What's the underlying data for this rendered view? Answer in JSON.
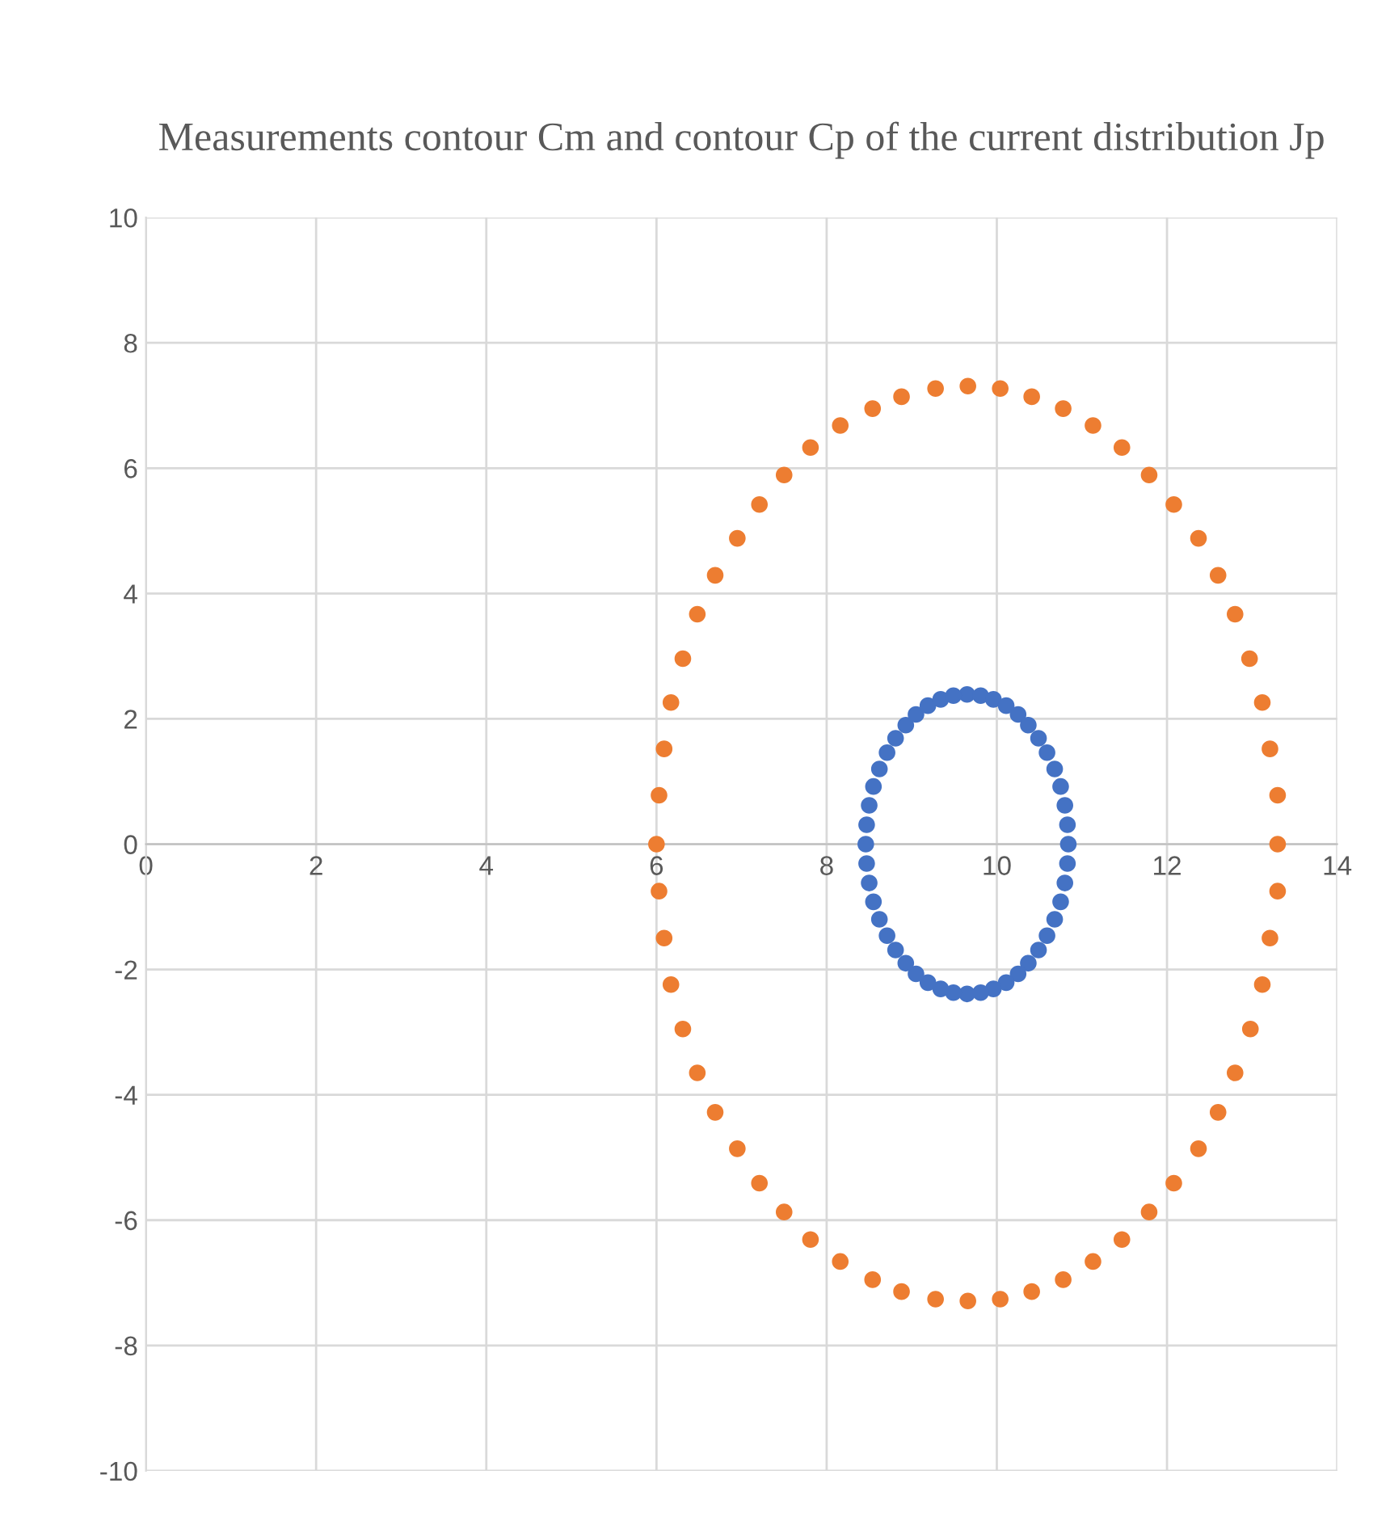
{
  "chart_data": {
    "type": "scatter",
    "title": "Measurements contour Cm and contour Cp of the current distribution Jp",
    "xlim": [
      0,
      14
    ],
    "ylim": [
      -10,
      10
    ],
    "xticks": [
      0,
      2,
      4,
      6,
      8,
      10,
      12,
      14
    ],
    "yticks": [
      -10,
      -8,
      -6,
      -4,
      -2,
      0,
      2,
      4,
      6,
      8,
      10
    ],
    "grid": true,
    "marker": "circle",
    "series": [
      {
        "color": "#4472c4",
        "x": [
          9.65,
          9.81,
          9.96,
          10.11,
          10.25,
          10.37,
          10.49,
          10.59,
          10.68,
          10.75,
          10.8,
          10.83,
          10.84,
          10.83,
          10.8,
          10.75,
          10.68,
          10.59,
          10.49,
          10.37,
          10.25,
          10.11,
          9.96,
          9.81,
          9.65,
          9.49,
          9.34,
          9.19,
          9.05,
          8.93,
          8.81,
          8.71,
          8.62,
          8.55,
          8.5,
          8.47,
          8.46,
          8.47,
          8.5,
          8.55,
          8.62,
          8.71,
          8.81,
          8.93,
          9.05,
          9.19,
          9.34,
          9.49
        ],
        "values": [
          2.39,
          2.37,
          2.31,
          2.21,
          2.07,
          1.9,
          1.69,
          1.46,
          1.2,
          0.92,
          0.62,
          0.31,
          0,
          -0.31,
          -0.62,
          -0.92,
          -1.2,
          -1.46,
          -1.69,
          -1.9,
          -2.07,
          -2.21,
          -2.31,
          -2.37,
          -2.39,
          -2.37,
          -2.31,
          -2.21,
          -2.07,
          -1.9,
          -1.69,
          -1.46,
          -1.2,
          -0.92,
          -0.62,
          -0.31,
          0,
          0.31,
          0.62,
          0.92,
          1.2,
          1.46,
          1.69,
          1.9,
          2.07,
          2.21,
          2.31,
          2.37
        ]
      },
      {
        "color": "#ed7d31",
        "x": [
          9.66,
          10.04,
          10.41,
          10.78,
          11.13,
          11.47,
          11.79,
          12.08,
          12.37,
          12.6,
          12.8,
          12.97,
          13.12,
          13.21,
          13.3,
          13.3,
          13.3,
          13.21,
          13.12,
          12.98,
          12.8,
          12.6,
          12.37,
          12.08,
          11.79,
          11.47,
          11.13,
          10.78,
          10.41,
          10.04,
          9.66,
          9.28,
          8.88,
          8.54,
          8.16,
          7.81,
          7.5,
          7.21,
          6.95,
          6.69,
          6.48,
          6.31,
          6.17,
          6.09,
          6.03,
          6.0,
          6.03,
          6.09,
          6.17,
          6.31,
          6.48,
          6.69,
          6.95,
          7.21,
          7.5,
          7.81,
          8.16,
          8.54,
          8.88,
          9.28
        ],
        "values": [
          7.31,
          7.27,
          7.14,
          6.95,
          6.68,
          6.33,
          5.89,
          5.42,
          4.88,
          4.29,
          3.67,
          2.96,
          2.26,
          1.52,
          0.78,
          0.0,
          -0.75,
          -1.5,
          -2.24,
          -2.95,
          -3.65,
          -4.28,
          -4.86,
          -5.41,
          -5.87,
          -6.31,
          -6.66,
          -6.95,
          -7.14,
          -7.26,
          -7.29,
          -7.26,
          -7.14,
          -6.95,
          -6.66,
          -6.31,
          -5.87,
          -5.41,
          -4.86,
          -4.28,
          -3.65,
          -2.95,
          -2.24,
          -1.5,
          -0.75,
          0.0,
          0.78,
          1.52,
          2.26,
          2.96,
          3.67,
          4.29,
          4.88,
          5.42,
          5.89,
          6.33,
          6.68,
          6.95,
          7.14,
          7.27
        ]
      }
    ]
  }
}
